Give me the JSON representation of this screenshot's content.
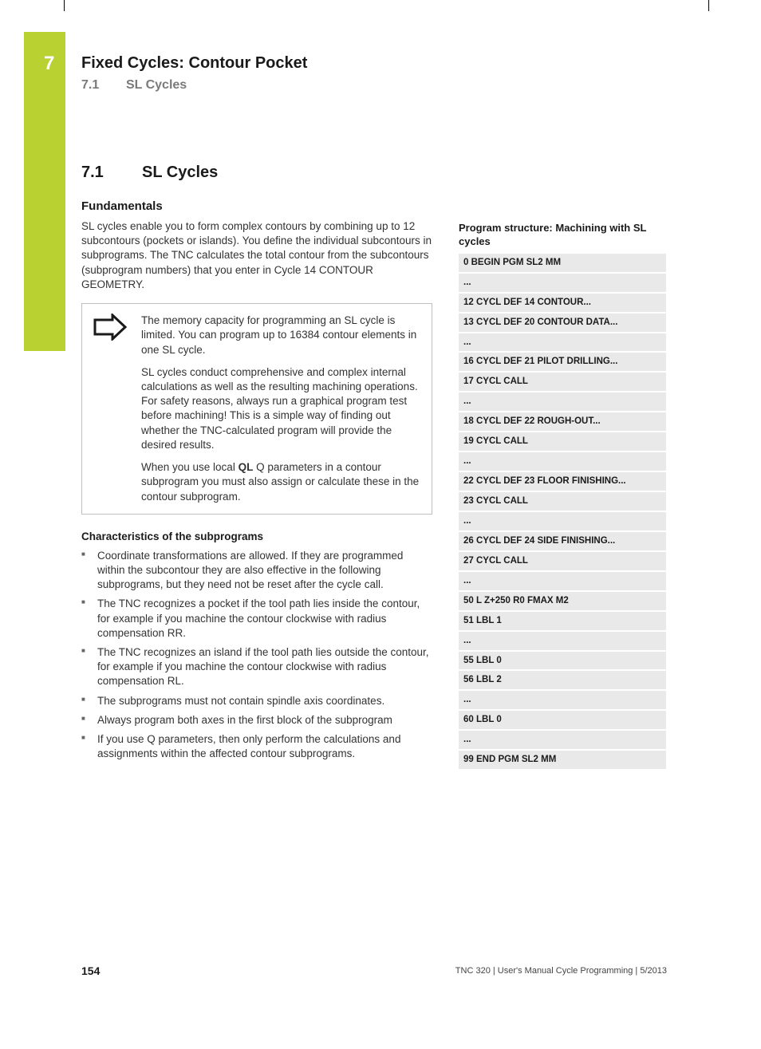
{
  "chapter_num": "7",
  "header_title": "Fixed Cycles: Contour Pocket",
  "header_sub_num": "7.1",
  "header_sub_title": "SL Cycles",
  "section_num": "7.1",
  "section_title": "SL Cycles",
  "fundamentals_head": "Fundamentals",
  "fundamentals_body": "SL cycles enable you to form complex contours by combining up to 12 subcontours (pockets or islands). You define the individual subcontours in subprograms. The TNC calculates the total contour from the subcontours (subprogram numbers) that you enter in Cycle 14 CONTOUR GEOMETRY.",
  "info_p1": "The memory capacity for programming an SL cycle is limited. You can program up to 16384 contour elements in one SL cycle.",
  "info_p2": "SL cycles conduct comprehensive and complex internal calculations as well as the resulting machining operations. For safety reasons, always run a graphical program test before machining! This is a simple way of finding out whether the TNC-calculated program will provide the desired results.",
  "info_p3_pre": "When you use local ",
  "info_p3_bold": "QL",
  "info_p3_post": " Q parameters in a contour subprogram you must also assign or calculate these in the contour subprogram.",
  "char_head": "Characteristics of the subprograms",
  "char_items": [
    "Coordinate transformations are allowed. If they are programmed within the subcontour they are also effective in the following subprograms, but they need not be reset after the cycle call.",
    "The TNC recognizes a pocket if the tool path lies inside the contour, for example if you machine the contour clockwise with radius compensation RR.",
    "The TNC recognizes an island if the tool path lies outside the contour, for example if you machine the contour clockwise with radius compensation RL.",
    "The subprograms must not contain spindle axis coordinates.",
    "Always program both axes in the first block of the subprogram",
    "If you use Q parameters, then only perform the calculations and assignments within the affected contour subprograms."
  ],
  "prog_head": "Program structure: Machining with SL cycles",
  "prog_rows": [
    "0 BEGIN PGM SL2 MM",
    "...",
    "12 CYCL DEF 14 CONTOUR...",
    "13 CYCL DEF 20 CONTOUR DATA...",
    "...",
    "16 CYCL DEF 21 PILOT DRILLING...",
    "17 CYCL CALL",
    "...",
    "18 CYCL DEF 22 ROUGH-OUT...",
    "19 CYCL CALL",
    "...",
    "22 CYCL DEF 23 FLOOR FINISHING...",
    "23 CYCL CALL",
    "...",
    "26 CYCL DEF 24 SIDE FINISHING...",
    "27 CYCL CALL",
    "...",
    "50 L Z+250 R0 FMAX M2",
    "51 LBL 1",
    "...",
    "55 LBL 0",
    "56 LBL 2",
    "...",
    "60 LBL 0",
    "...",
    "99 END PGM SL2 MM"
  ],
  "page_num": "154",
  "footer": "TNC 320 | User's Manual Cycle Programming | 5/2013"
}
